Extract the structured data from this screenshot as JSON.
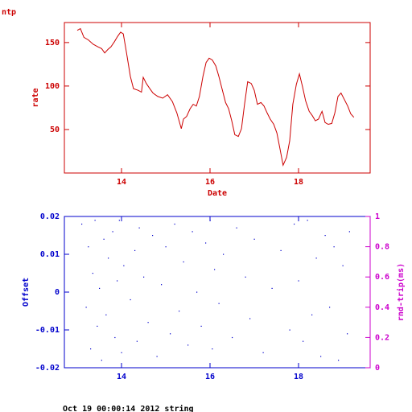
{
  "chart_data": [
    {
      "type": "line",
      "title": "ntp",
      "ylabel": "rate",
      "xlabel": "Date",
      "color": "#cc0000",
      "xlim": [
        12.709,
        19.618
      ],
      "xticks": [
        14,
        16,
        18
      ],
      "ylim": [
        0,
        173
      ],
      "yticks": [
        50,
        100,
        150
      ],
      "x": [
        13.0,
        13.07,
        13.15,
        13.25,
        13.36,
        13.47,
        13.55,
        13.62,
        13.69,
        13.76,
        13.84,
        13.91,
        13.98,
        14.04,
        14.11,
        14.2,
        14.27,
        14.38,
        14.45,
        14.49,
        14.56,
        14.64,
        14.71,
        14.82,
        14.93,
        15.04,
        15.15,
        15.25,
        15.35,
        15.4,
        15.47,
        15.55,
        15.62,
        15.69,
        15.76,
        15.84,
        15.91,
        15.98,
        16.05,
        16.13,
        16.2,
        16.27,
        16.35,
        16.42,
        16.49,
        16.56,
        16.64,
        16.71,
        16.78,
        16.85,
        16.93,
        17.0,
        17.07,
        17.15,
        17.22,
        17.29,
        17.36,
        17.44,
        17.51,
        17.58,
        17.65,
        17.73,
        17.8,
        17.87,
        17.95,
        18.02,
        18.09,
        18.16,
        18.24,
        18.31,
        18.38,
        18.45,
        18.53,
        18.6,
        18.67,
        18.75,
        18.82,
        18.89,
        18.96,
        19.04,
        19.11,
        19.18,
        19.25
      ],
      "values": [
        164,
        166,
        156,
        153,
        148,
        145,
        143,
        138,
        142,
        145,
        151,
        157,
        162,
        160,
        139,
        111,
        97,
        95,
        93,
        110,
        103,
        97,
        92,
        88,
        86,
        90,
        82,
        69,
        51,
        62,
        65,
        74,
        79,
        77,
        88,
        111,
        127,
        132,
        130,
        123,
        111,
        97,
        81,
        74,
        60,
        44,
        42,
        51,
        79,
        105,
        103,
        95,
        79,
        81,
        77,
        69,
        62,
        56,
        46,
        28,
        9,
        18,
        37,
        79,
        102,
        114,
        99,
        83,
        71,
        66,
        60,
        62,
        71,
        58,
        56,
        57,
        69,
        88,
        92,
        84,
        77,
        68,
        64
      ]
    },
    {
      "type": "scatter",
      "ylabel": "Offset",
      "y2label": "rnd-trip(ms)",
      "color": "#0000cc",
      "y2color": "#cc00cc",
      "xlim": [
        12.709,
        19.618
      ],
      "xticks": [
        14,
        16,
        18
      ],
      "ylim": [
        -0.02,
        0.02
      ],
      "yticks": [
        -0.02,
        -0.01,
        0,
        0.01,
        0.02
      ],
      "y2lim": [
        0,
        1
      ],
      "y2ticks": [
        0,
        0.2,
        0.4,
        0.6,
        0.8,
        1
      ],
      "x": [
        13.1,
        13.2,
        13.25,
        13.3,
        13.35,
        13.4,
        13.45,
        13.5,
        13.55,
        13.6,
        13.65,
        13.7,
        13.8,
        13.85,
        13.9,
        13.95,
        14.0,
        14.05,
        14.2,
        14.3,
        14.35,
        14.4,
        14.5,
        14.6,
        14.7,
        14.8,
        14.9,
        15.0,
        15.1,
        15.2,
        15.3,
        15.4,
        15.5,
        15.6,
        15.7,
        15.8,
        15.9,
        16.0,
        16.05,
        16.1,
        16.2,
        16.3,
        16.5,
        16.6,
        16.8,
        16.9,
        17.0,
        17.2,
        17.4,
        17.6,
        17.8,
        17.9,
        18.0,
        18.1,
        18.2,
        18.3,
        18.4,
        18.5,
        18.6,
        18.7,
        18.8,
        18.9,
        19.0,
        19.1,
        19.15
      ],
      "values": [
        0.018,
        -0.004,
        0.012,
        -0.015,
        0.005,
        0.019,
        -0.009,
        0.001,
        -0.018,
        0.014,
        -0.006,
        0.009,
        0.016,
        -0.012,
        0.003,
        0.019,
        -0.016,
        0.007,
        -0.002,
        0.011,
        -0.013,
        0.017,
        0.004,
        -0.008,
        0.015,
        -0.017,
        0.002,
        0.012,
        -0.011,
        0.018,
        -0.005,
        0.008,
        -0.014,
        0.016,
        0.0,
        -0.009,
        0.013,
        0.019,
        -0.015,
        0.006,
        -0.003,
        0.01,
        -0.012,
        0.017,
        0.004,
        -0.007,
        0.014,
        -0.016,
        0.001,
        0.011,
        -0.01,
        0.018,
        0.003,
        -0.013,
        0.019,
        -0.006,
        0.009,
        -0.017,
        0.015,
        -0.004,
        0.012,
        -0.018,
        0.007,
        -0.011,
        0.016
      ]
    }
  ],
  "footer": "Oct 19 00:00:14 2012 string"
}
